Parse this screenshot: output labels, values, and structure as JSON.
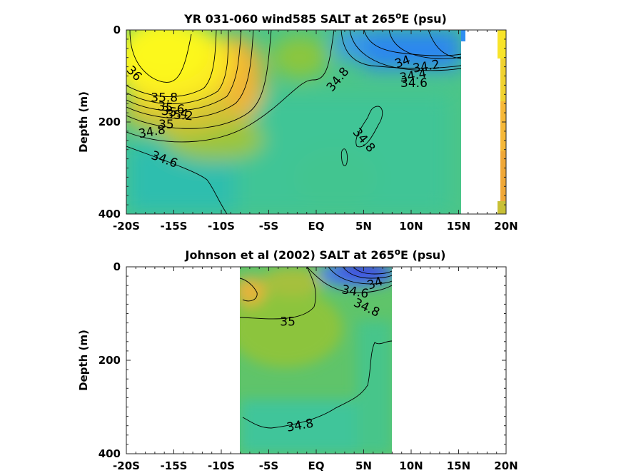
{
  "chart_data": [
    {
      "type": "heatmap",
      "title_prefix": "YR 031-060 wind585 SALT at 265",
      "title_degree": "o",
      "title_suffix": "E (psu)",
      "ylabel": "Depth (m)",
      "xlabel": "",
      "xlim": [
        -20,
        20
      ],
      "ylim": [
        0,
        400
      ],
      "y_reversed": true,
      "x_ticks": [
        {
          "value": -20,
          "label": "-20S"
        },
        {
          "value": -15,
          "label": "-15S"
        },
        {
          "value": -10,
          "label": "-10S"
        },
        {
          "value": -5,
          "label": "-5S"
        },
        {
          "value": 0,
          "label": "EQ"
        },
        {
          "value": 5,
          "label": "5N"
        },
        {
          "value": 10,
          "label": "10N"
        },
        {
          "value": 15,
          "label": "15N"
        },
        {
          "value": 20,
          "label": "20N"
        }
      ],
      "y_ticks": [
        {
          "value": 0,
          "label": "0"
        },
        {
          "value": 200,
          "label": "200"
        },
        {
          "value": 400,
          "label": "400"
        }
      ],
      "colors": {
        "fresh": "#3d49e0",
        "low": "#2b8cf2",
        "mid": "#3fc47e",
        "mid2": "#8cc23c",
        "high": "#f5bd2f",
        "max": "#fafa14"
      },
      "contour_labels": [
        {
          "text": "36",
          "x": -19.2,
          "y": 95,
          "angle": 45
        },
        {
          "text": "35.8",
          "x": -16.0,
          "y": 148,
          "angle": 0
        },
        {
          "text": "35.6",
          "x": -15.3,
          "y": 170,
          "angle": 8
        },
        {
          "text": "35.4",
          "x": -14.9,
          "y": 180,
          "angle": 8
        },
        {
          "text": "35.2",
          "x": -14.4,
          "y": 186,
          "angle": 5
        },
        {
          "text": "35",
          "x": -15.8,
          "y": 206,
          "angle": 0
        },
        {
          "text": "34.8",
          "x": -17.3,
          "y": 222,
          "angle": -10
        },
        {
          "text": "34.6",
          "x": -16.0,
          "y": 282,
          "angle": 20
        },
        {
          "text": "34.8",
          "x": 2.3,
          "y": 108,
          "angle": -50
        },
        {
          "text": "34",
          "x": 9.1,
          "y": 70,
          "angle": -20
        },
        {
          "text": "34.2",
          "x": 11.6,
          "y": 80,
          "angle": -10
        },
        {
          "text": "34.4",
          "x": 10.2,
          "y": 100,
          "angle": -10
        },
        {
          "text": "34.6",
          "x": 10.3,
          "y": 116,
          "angle": 0
        },
        {
          "text": "34.8",
          "x": 5.0,
          "y": 240,
          "angle": 50
        }
      ]
    },
    {
      "type": "heatmap",
      "title_prefix": "Johnson et al (2002) SALT at 265",
      "title_degree": "o",
      "title_suffix": "E (psu)",
      "ylabel": "Depth (m)",
      "xlabel": "",
      "xlim": [
        -20,
        20
      ],
      "ylim": [
        0,
        400
      ],
      "y_reversed": true,
      "data_x_range": [
        -8,
        8
      ],
      "x_ticks": [
        {
          "value": -20,
          "label": "-20S"
        },
        {
          "value": -15,
          "label": "-15S"
        },
        {
          "value": -10,
          "label": "-10S"
        },
        {
          "value": -5,
          "label": "-5S"
        },
        {
          "value": 0,
          "label": "EQ"
        },
        {
          "value": 5,
          "label": "5N"
        },
        {
          "value": 10,
          "label": "10N"
        },
        {
          "value": 15,
          "label": "15N"
        },
        {
          "value": 20,
          "label": "20N"
        }
      ],
      "y_ticks": [
        {
          "value": 0,
          "label": "0"
        },
        {
          "value": 200,
          "label": "200"
        },
        {
          "value": 400,
          "label": "400"
        }
      ],
      "contour_labels": [
        {
          "text": "35",
          "x": -3.0,
          "y": 118,
          "angle": 0
        },
        {
          "text": "34.6",
          "x": 4.1,
          "y": 54,
          "angle": 10
        },
        {
          "text": "34",
          "x": 6.2,
          "y": 36,
          "angle": -20
        },
        {
          "text": "34.8",
          "x": 5.3,
          "y": 88,
          "angle": 25
        },
        {
          "text": "34.8",
          "x": -1.7,
          "y": 340,
          "angle": -10
        }
      ]
    }
  ]
}
